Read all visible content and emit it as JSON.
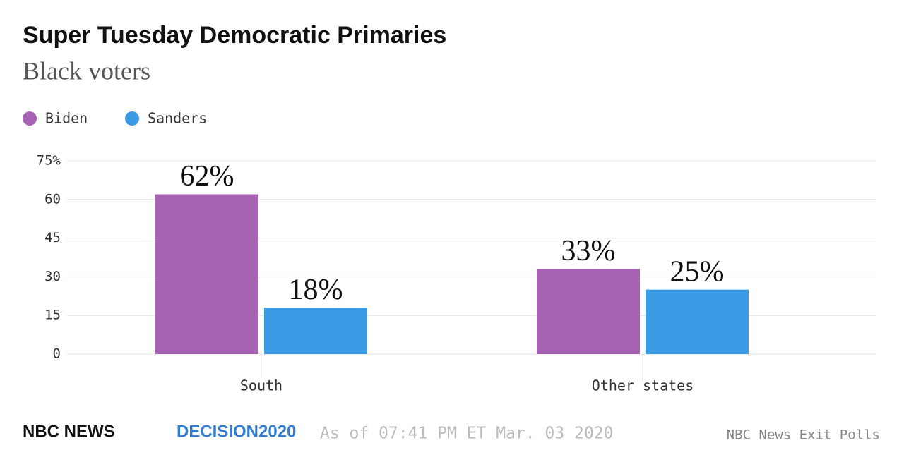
{
  "chart_data": {
    "type": "bar",
    "title": "Super Tuesday Democratic Primaries",
    "subtitle": "Black voters",
    "categories": [
      "South",
      "Other states"
    ],
    "series": [
      {
        "name": "Biden",
        "color": "#a862b4",
        "values": [
          62,
          33
        ],
        "value_labels": [
          "62%",
          "33%"
        ]
      },
      {
        "name": "Sanders",
        "color": "#3a9ae4",
        "values": [
          18,
          25
        ],
        "value_labels": [
          "18%",
          "25%"
        ]
      }
    ],
    "ylim": [
      0,
      75
    ],
    "yticks": [
      0,
      15,
      30,
      45,
      60,
      {
        "value": 75,
        "label": "75%"
      }
    ],
    "grid": true,
    "legend": "top-left",
    "brand": "NBC NEWS",
    "brand_sub": "DECISION2020",
    "timestamp": "As of 07:41 PM ET Mar. 03 2020",
    "source": "NBC News Exit Polls"
  }
}
